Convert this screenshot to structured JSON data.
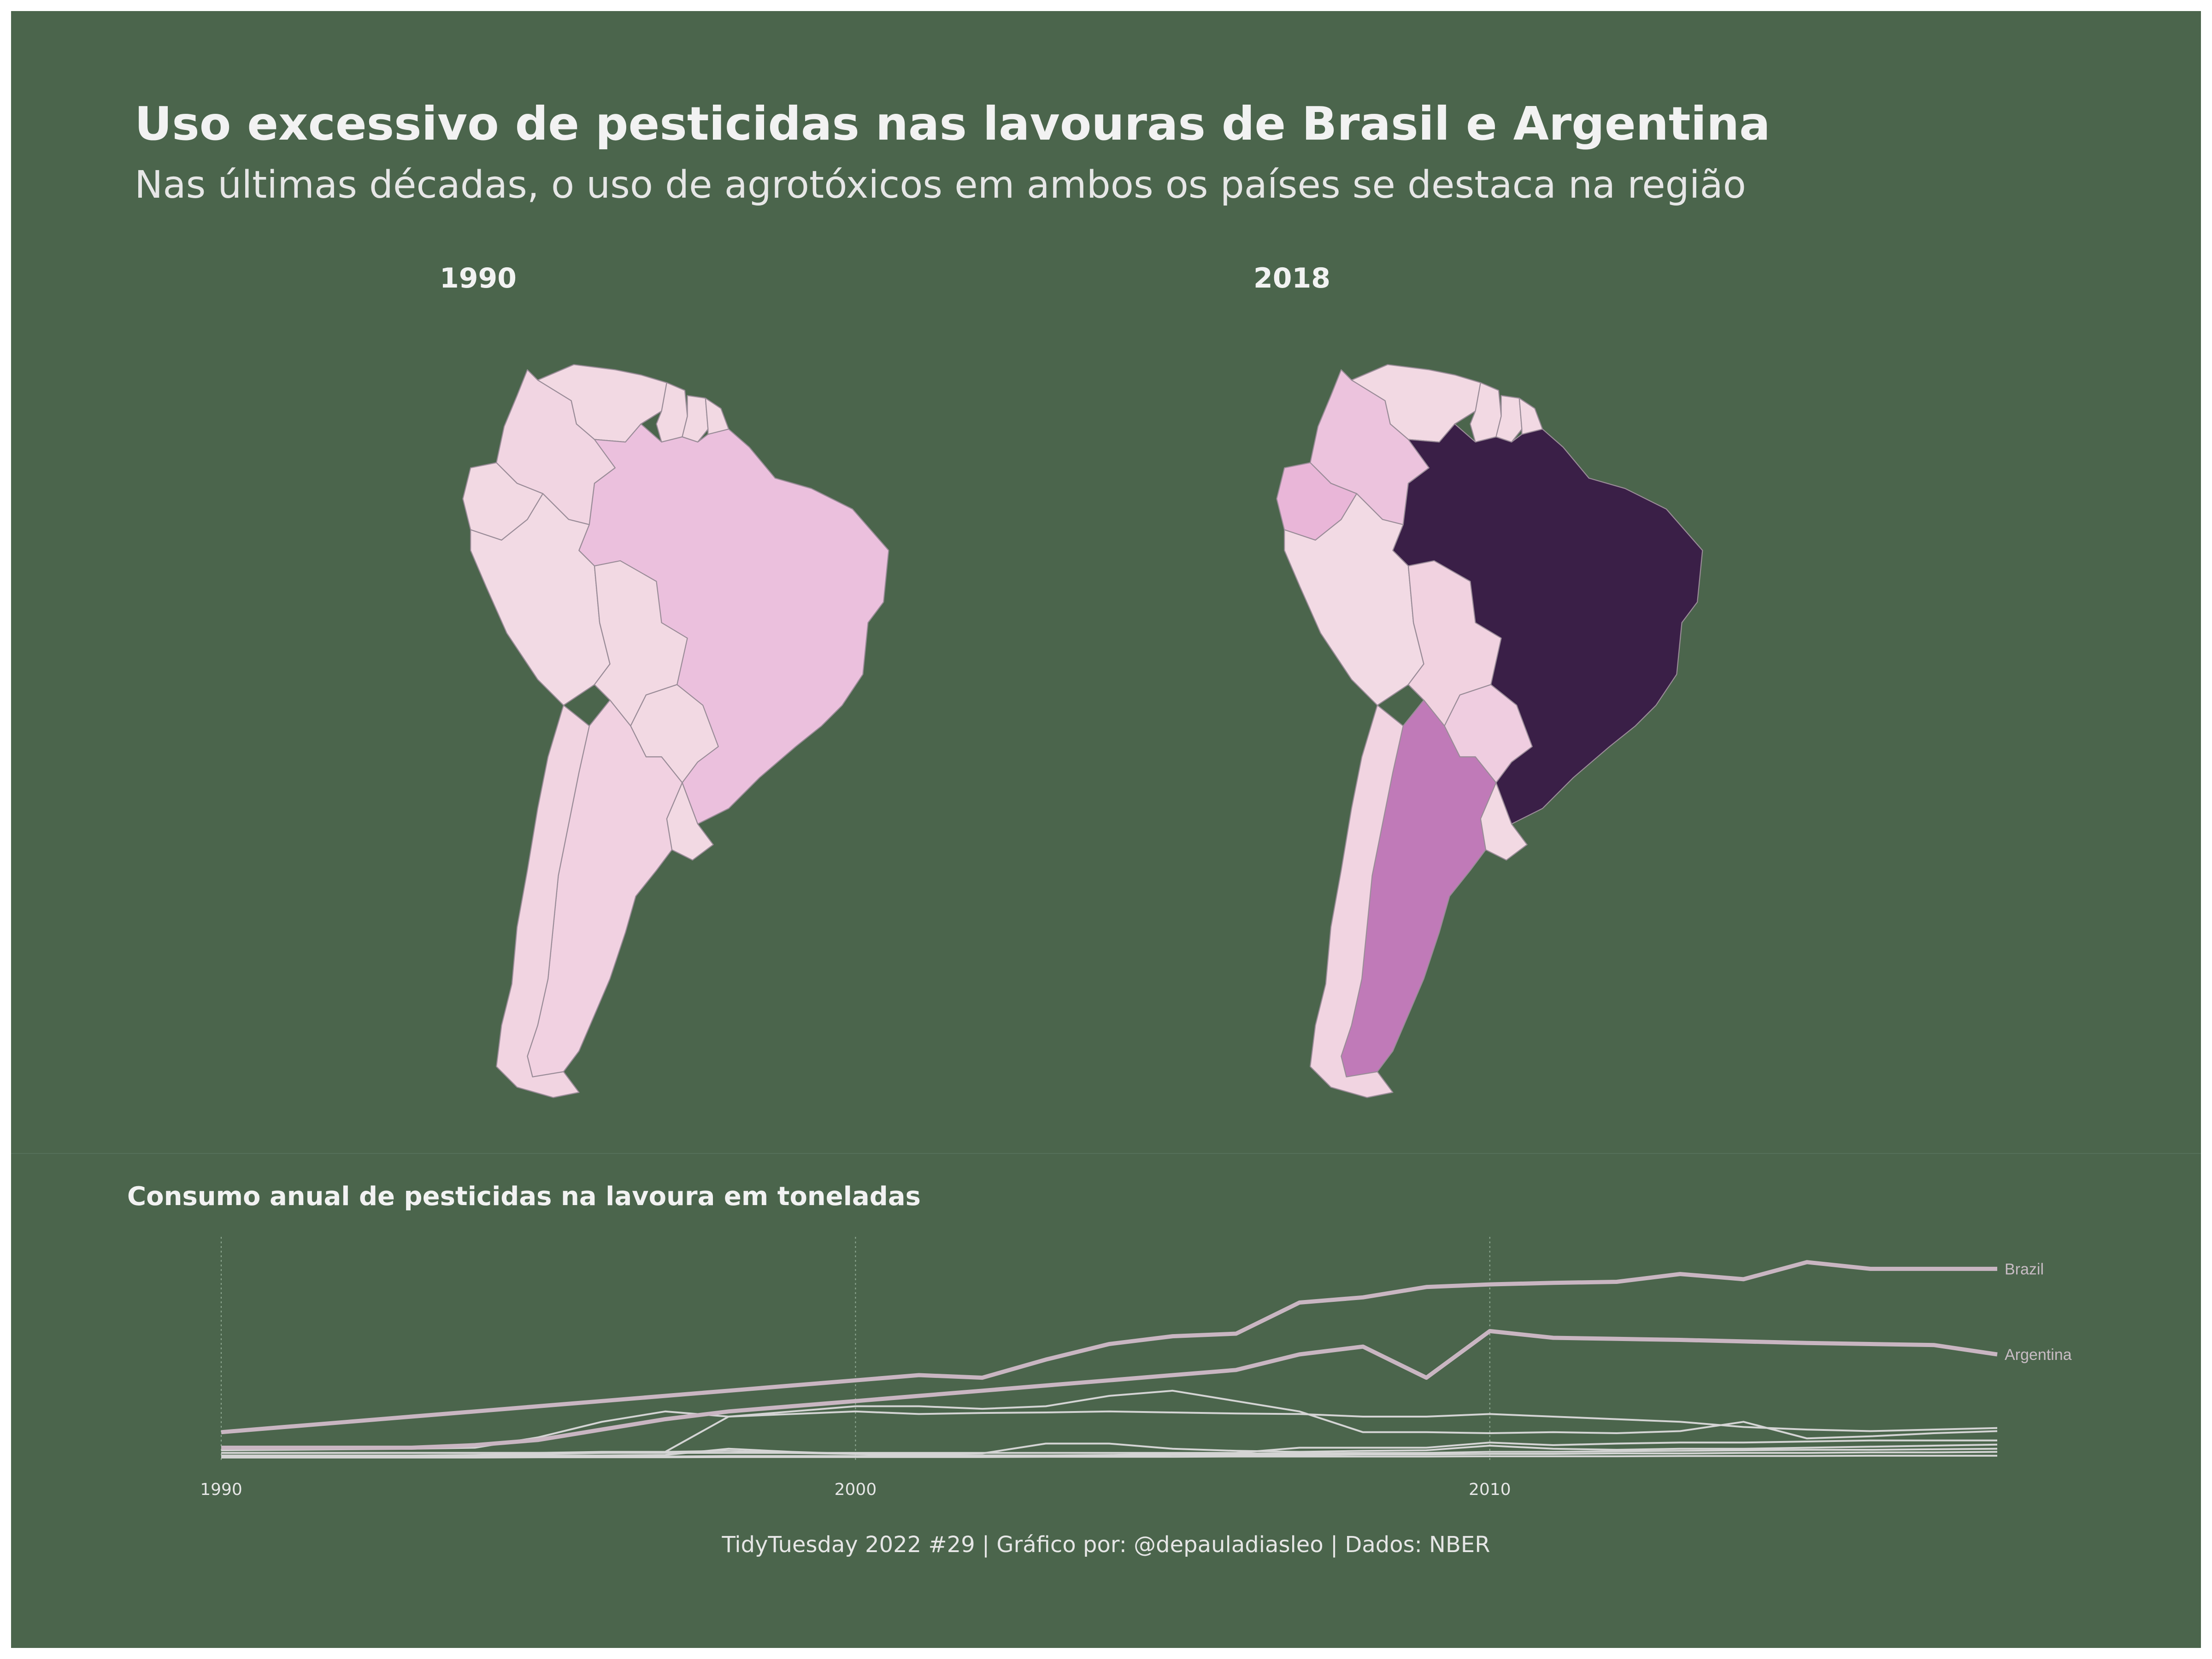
{
  "title": "Uso excessivo de pesticidas nas lavouras de Brasil e Argentina",
  "subtitle": "Nas últimas décadas, o uso de agrotóxicos em ambos os países se destaca na região",
  "caption": "TidyTuesday 2022 #29 | Gráfico por: @depauladiasleo | Dados: NBER",
  "colors": {
    "background": "#4b654c",
    "text": "#f2f2f2",
    "border": "#9a8c98",
    "line": "#c9b6c2",
    "line_thin": "#d4d4d4",
    "grid": "#8fa892",
    "scale": [
      "#f2d9e3",
      "#ebc6dd",
      "#c07ab8",
      "#3a1f47"
    ]
  },
  "maps": [
    {
      "label": "1990",
      "fills": {
        "colombia": "#f1d5e2",
        "venezuela": "#f2d9e3",
        "guyana": "#f2d9e3",
        "suriname": "#f2d9e3",
        "guiana": "#f2d9e3",
        "ecuador": "#f2d9e3",
        "peru": "#f2dae4",
        "brazil": "#ebc0dd",
        "bolivia": "#f2d9e3",
        "paraguay": "#f2d9e3",
        "chile": "#f1d4e1",
        "argentina": "#f1d1e1",
        "uruguay": "#f2d9e3"
      }
    },
    {
      "label": "2018",
      "fills": {
        "colombia": "#ecc3dd",
        "venezuela": "#f2d9e3",
        "guyana": "#f2d9e3",
        "suriname": "#f2d9e3",
        "guiana": "#f2d9e3",
        "ecuador": "#e9b6d8",
        "peru": "#f2dae4",
        "brazil": "#3a1f47",
        "bolivia": "#f1d2e0",
        "paraguay": "#efcde0",
        "chile": "#f1d4e1",
        "argentina": "#c07ab8",
        "uruguay": "#f2d9e3"
      }
    }
  ],
  "chart_data": {
    "type": "line",
    "title": "Consumo anual de pesticidas na lavoura em toneladas",
    "xlabel": "",
    "ylabel": "",
    "x": [
      1990,
      1991,
      1992,
      1993,
      1994,
      1995,
      1996,
      1997,
      1998,
      1999,
      2000,
      2001,
      2002,
      2003,
      2004,
      2005,
      2006,
      2007,
      2008,
      2009,
      2010,
      2011,
      2012,
      2013,
      2014,
      2015,
      2016,
      2017,
      2018
    ],
    "x_ticks": [
      "1990",
      "2000",
      "2010"
    ],
    "xlim": [
      1990,
      2018
    ],
    "ylim": [
      0,
      400000
    ],
    "grid_x": true,
    "grid_y": false,
    "legend": "direct labels at line ends",
    "series": [
      {
        "name": "Brazil",
        "highlight": true,
        "values": [
          50000,
          60000,
          70000,
          80000,
          90000,
          100000,
          110000,
          120000,
          130000,
          140000,
          150000,
          160000,
          155000,
          190000,
          220000,
          235000,
          240000,
          300000,
          310000,
          330000,
          335000,
          338000,
          340000,
          355000,
          345000,
          378000,
          365000,
          365000,
          365000
        ]
      },
      {
        "name": "Argentina",
        "highlight": true,
        "values": [
          20000,
          20000,
          20000,
          20000,
          25000,
          35000,
          55000,
          75000,
          90000,
          100000,
          110000,
          120000,
          130000,
          140000,
          150000,
          160000,
          170000,
          200000,
          215000,
          155000,
          245000,
          232000,
          230000,
          228000,
          225000,
          222000,
          220000,
          218000,
          200000
        ]
      },
      {
        "values": [
          15000,
          16000,
          17000,
          18000,
          20000,
          40000,
          70000,
          90000,
          80000,
          90000,
          100000,
          100000,
          95000,
          100000,
          120000,
          130000,
          110000,
          90000,
          50000,
          50000,
          48000,
          50000,
          48000,
          52000,
          70000,
          38000,
          42000,
          48000,
          52000
        ]
      },
      {
        "values": [
          10000,
          10000,
          10000,
          10000,
          10000,
          10000,
          12000,
          12000,
          80000,
          85000,
          90000,
          85000,
          87000,
          88000,
          90000,
          88000,
          86000,
          85000,
          80000,
          80000,
          85000,
          80000,
          75000,
          70000,
          60000,
          55000,
          52000,
          55000,
          58000
        ]
      },
      {
        "values": [
          10000,
          10000,
          10000,
          10000,
          10000,
          10000,
          10000,
          10000,
          10000,
          10000,
          10000,
          10000,
          10000,
          10000,
          10000,
          10000,
          10000,
          20000,
          20000,
          20000,
          30000,
          25000,
          28000,
          30000,
          30000,
          32000,
          34000,
          34000,
          34000
        ]
      },
      {
        "values": [
          5000,
          5000,
          5000,
          5000,
          6000,
          8000,
          10000,
          12000,
          14000,
          10000,
          8000,
          8000,
          9000,
          28000,
          28000,
          18000,
          14000,
          12000,
          14000,
          15000,
          24000,
          18000,
          16000,
          18000,
          18000,
          20000,
          22000,
          24000,
          26000
        ]
      },
      {
        "values": [
          3000,
          3000,
          3000,
          4000,
          4000,
          5000,
          5000,
          6000,
          18000,
          12000,
          8000,
          6000,
          5000,
          5000,
          6000,
          8000,
          9000,
          9000,
          10000,
          10000,
          12000,
          12000,
          13000,
          14000,
          15000,
          16000,
          16000,
          17000,
          18000
        ]
      },
      {
        "values": [
          2000,
          2000,
          2000,
          2000,
          2000,
          3000,
          3000,
          3000,
          4000,
          4000,
          4000,
          4000,
          5000,
          5000,
          5000,
          6000,
          6000,
          6000,
          7000,
          7000,
          8000,
          8000,
          9000,
          9000,
          10000,
          10000,
          11000,
          11000,
          12000
        ]
      },
      {
        "values": [
          1000,
          1000,
          1000,
          1000,
          1000,
          1500,
          1500,
          1500,
          2000,
          2000,
          2000,
          2000,
          2000,
          2500,
          2500,
          2500,
          3000,
          3000,
          3000,
          3000,
          3500,
          3500,
          3500,
          4000,
          4000,
          4000,
          4500,
          4500,
          4500
        ]
      }
    ]
  }
}
